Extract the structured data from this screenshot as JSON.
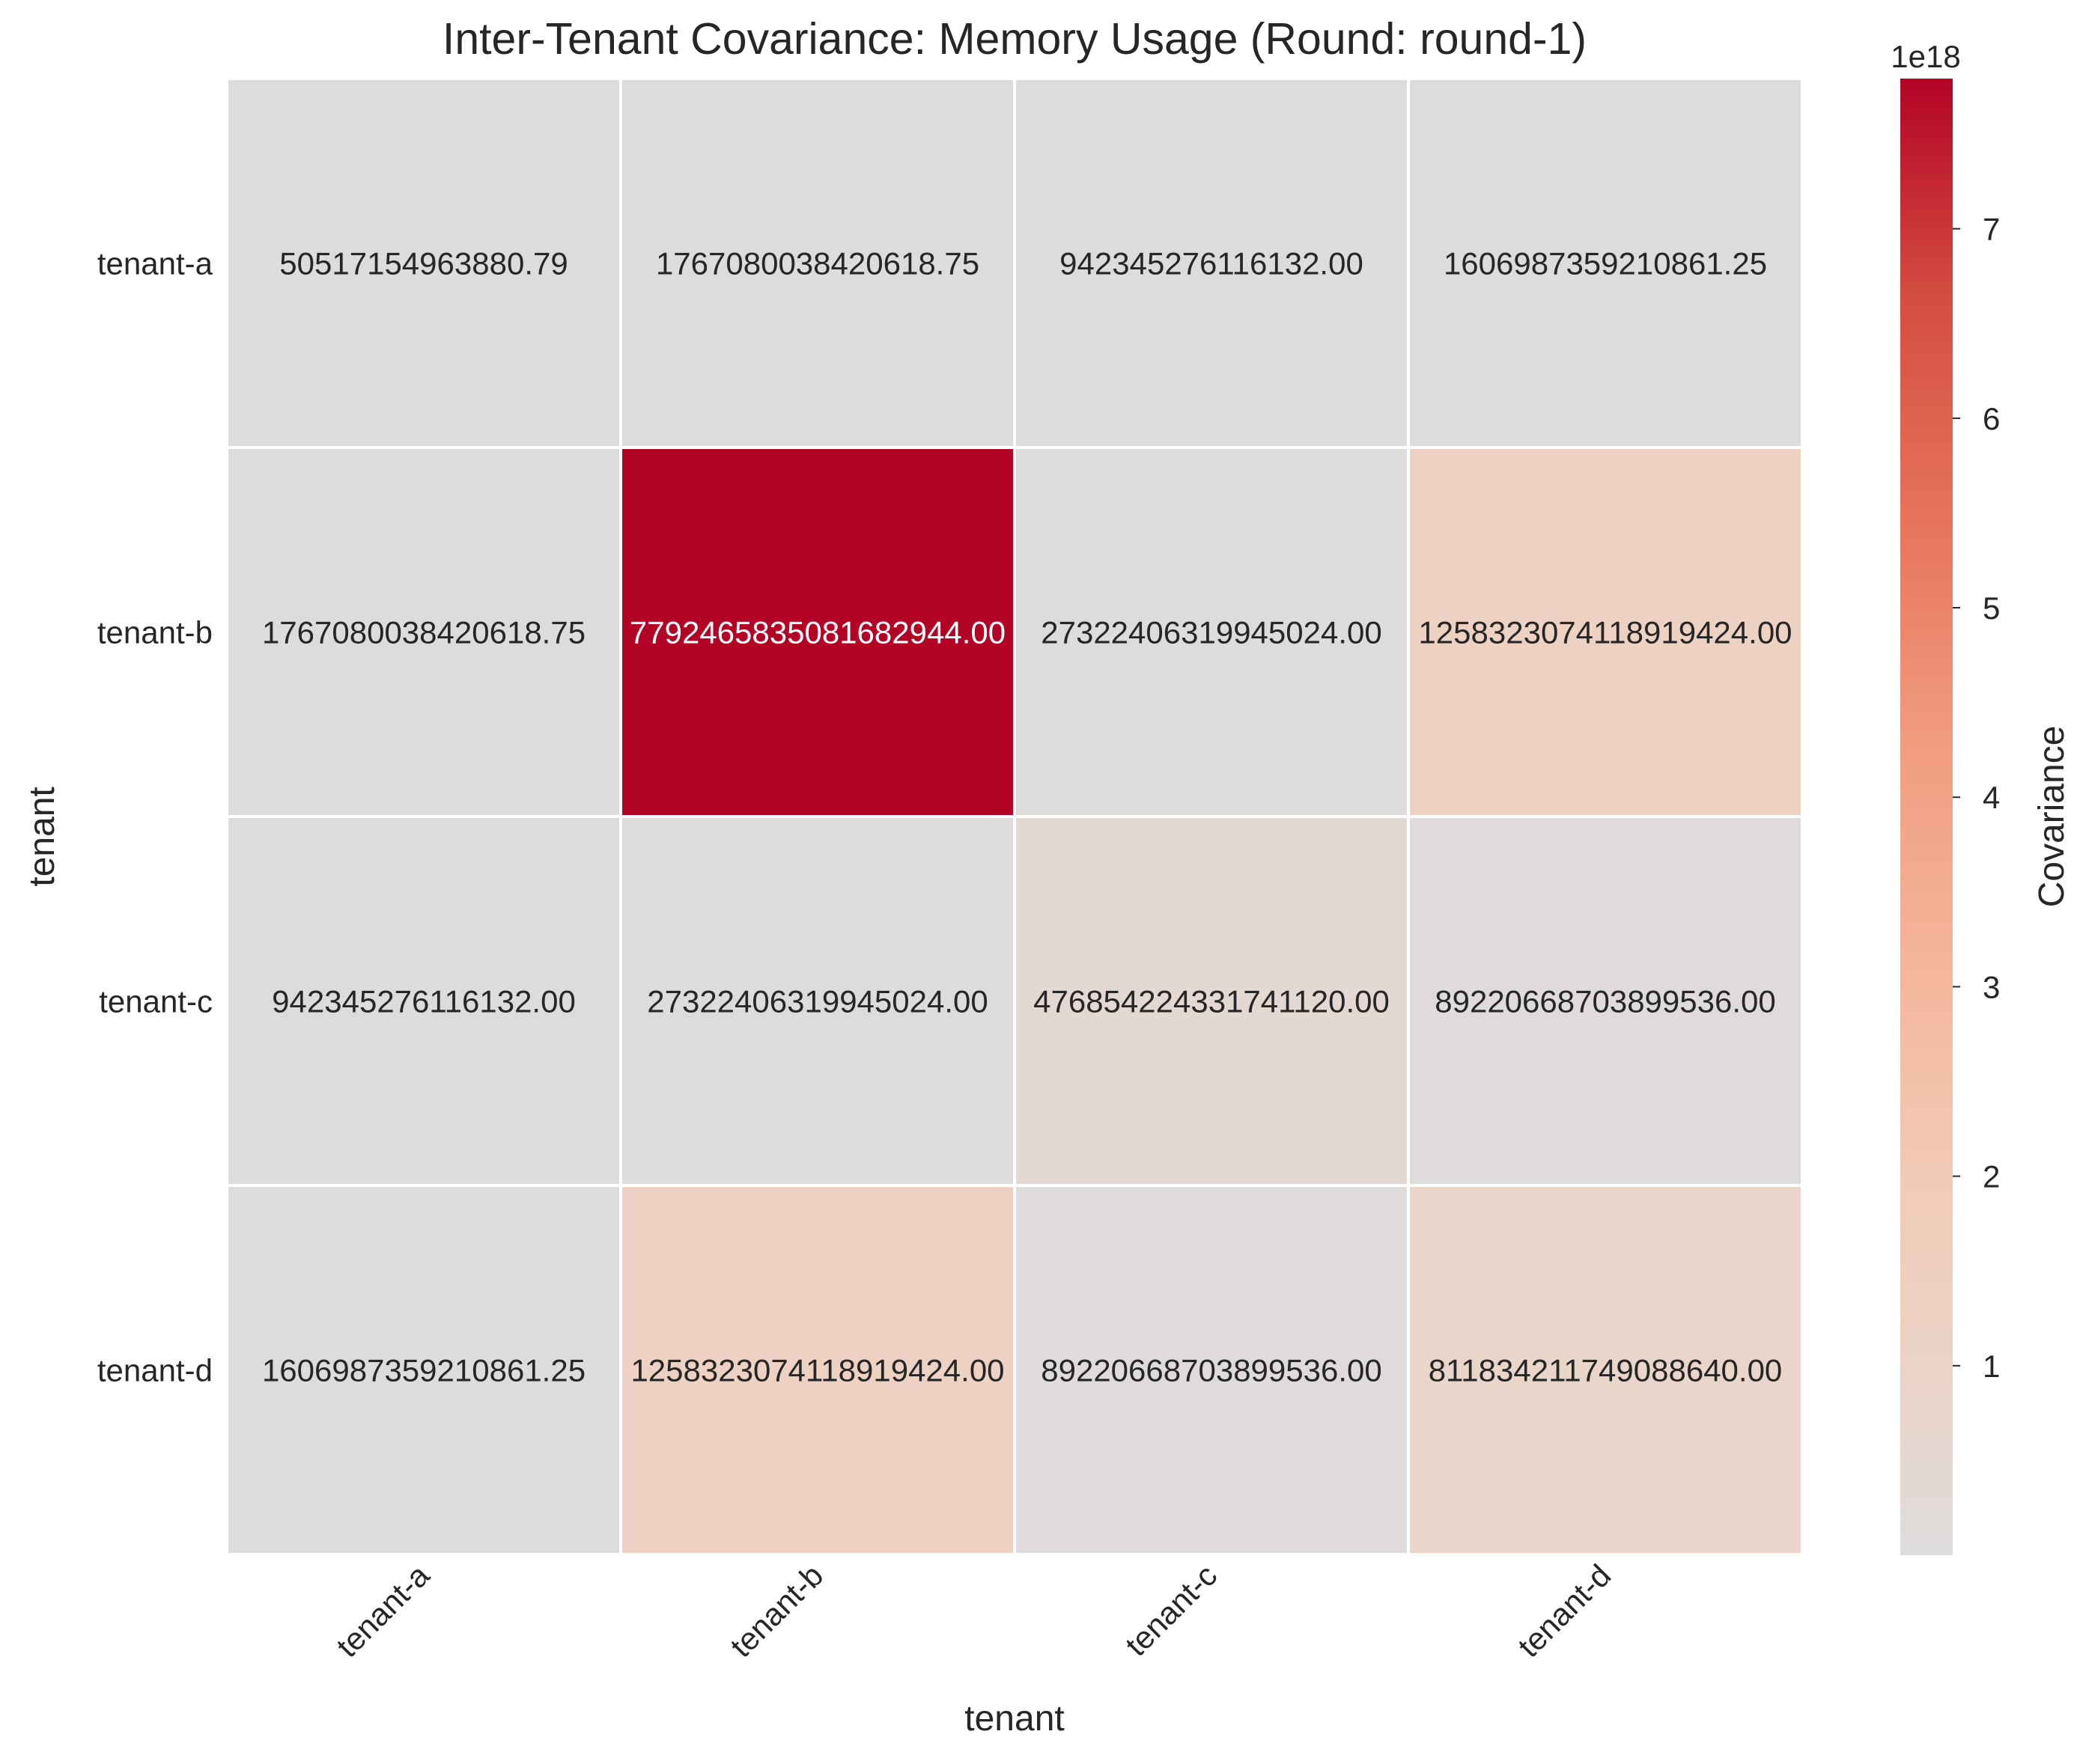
{
  "chart_data": {
    "type": "heatmap",
    "title": "Inter-Tenant Covariance: Memory Usage (Round: round-1)",
    "xlabel": "tenant",
    "ylabel": "tenant",
    "rows": [
      "tenant-a",
      "tenant-b",
      "tenant-c",
      "tenant-d"
    ],
    "cols": [
      "tenant-a",
      "tenant-b",
      "tenant-c",
      "tenant-d"
    ],
    "values": [
      [
        50517154963880.79,
        1767080038420618.8,
        942345276116132.0,
        1606987359210861.2
      ],
      [
        1767080038420618.8,
        7.792465835081683e+18,
        2.7322406319945024e+16,
        1.2583230741189194e+18
      ],
      [
        942345276116132.0,
        2.7322406319945024e+16,
        4.768542243317411e+17,
        8.922066870389954e+16
      ],
      [
        1606987359210861.2,
        1.2583230741189194e+18,
        8.922066870389954e+16,
        8.118342117490886e+17
      ]
    ],
    "labels": [
      [
        "50517154963880.79",
        "1767080038420618.75",
        "942345276116132.00",
        "1606987359210861.25"
      ],
      [
        "1767080038420618.75",
        "7792465835081682944.00",
        "27322406319945024.00",
        "1258323074118919424.00"
      ],
      [
        "942345276116132.00",
        "27322406319945024.00",
        "476854224331741120.00",
        "89220668703899536.00"
      ],
      [
        "1606987359210861.25",
        "1258323074118919424.00",
        "89220668703899536.00",
        "811834211749088640.00"
      ]
    ],
    "colorbar": {
      "label": "Covariance",
      "offset_text": "1e18",
      "ticks": [
        1,
        2,
        3,
        4,
        5,
        6,
        7
      ],
      "tick_scale": 1e+18,
      "range": [
        50517154963880.79,
        7.792465835081683e+18
      ]
    },
    "colormap": "coolwarm",
    "colormap_center": 0
  }
}
